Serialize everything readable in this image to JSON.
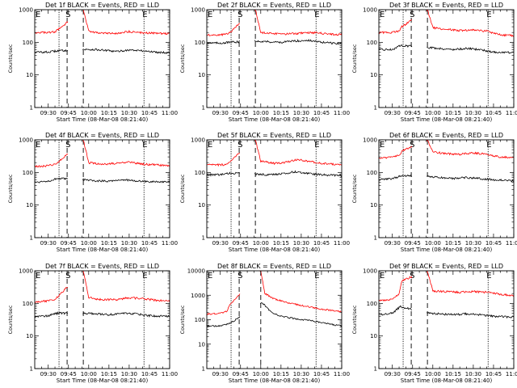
{
  "figure": {
    "colors": {
      "events": "#000000",
      "lld": "#ff0000",
      "axes": "#000000",
      "background": "#ffffff"
    },
    "shared": {
      "xlabel": "Start Time (08-Mar-08 08:21:40)",
      "ylabel": "Counts/sec",
      "xticks": [
        "09:30",
        "09:45",
        "10:00",
        "10:15",
        "10:30",
        "10:45",
        "11:00"
      ],
      "yticks": [
        "1",
        "10",
        "100",
        "1000"
      ],
      "yticks_tall": [
        "1",
        "10",
        "100",
        "1000",
        "10000"
      ],
      "marker_labels": [
        "E",
        "S",
        "E"
      ]
    }
  },
  "chart_data": [
    {
      "type": "line",
      "title": "Det 1f BLACK = Events, RED = LLD",
      "xlabel": "Start Time (08-Mar-08 08:21:40)",
      "ylabel": "Counts/sec",
      "y_scale": "log",
      "xlim": [
        "09:20",
        "11:00"
      ],
      "ylim": [
        1,
        1000
      ],
      "markers": {
        "E_start": "09:38",
        "S": "09:44",
        "gap_end": "09:56",
        "E_end": "10:41"
      },
      "series": [
        {
          "name": "Events",
          "color": "#000000",
          "x": [
            "09:20",
            "09:30",
            "09:37",
            "09:56",
            "10:05",
            "10:15",
            "10:20",
            "10:30",
            "10:40",
            "10:50",
            "11:00"
          ],
          "values": [
            50,
            50,
            55,
            60,
            60,
            55,
            52,
            58,
            55,
            50,
            48
          ]
        },
        {
          "name": "LLD",
          "color": "#ff0000",
          "x": [
            "09:20",
            "09:30",
            "09:35",
            "09:37",
            "09:56",
            "10:00",
            "10:10",
            "10:20",
            "10:25",
            "10:30",
            "10:40",
            "10:50",
            "11:00"
          ],
          "values": [
            200,
            200,
            210,
            240,
            1000,
            220,
            190,
            185,
            200,
            215,
            195,
            190,
            185
          ]
        }
      ]
    },
    {
      "type": "line",
      "title": "Det 2f BLACK = Events, RED = LLD",
      "xlabel": "Start Time (08-Mar-08 08:21:40)",
      "ylabel": "Counts/sec",
      "y_scale": "log",
      "xlim": [
        "09:20",
        "11:00"
      ],
      "ylim": [
        1,
        1000
      ],
      "markers": {
        "E_start": "09:38",
        "S": "09:44",
        "gap_end": "09:56",
        "E_end": "10:41"
      },
      "series": [
        {
          "name": "Events",
          "color": "#000000",
          "x": [
            "09:20",
            "09:30",
            "09:37",
            "09:56",
            "10:05",
            "10:15",
            "10:25",
            "10:35",
            "10:45",
            "11:00"
          ],
          "values": [
            95,
            95,
            100,
            110,
            105,
            100,
            110,
            115,
            100,
            90
          ]
        },
        {
          "name": "LLD",
          "color": "#ff0000",
          "x": [
            "09:20",
            "09:30",
            "09:35",
            "09:37",
            "09:56",
            "10:00",
            "10:10",
            "10:20",
            "10:30",
            "10:40",
            "10:50",
            "11:00"
          ],
          "values": [
            170,
            170,
            180,
            200,
            1000,
            200,
            185,
            180,
            190,
            200,
            180,
            170
          ]
        }
      ]
    },
    {
      "type": "line",
      "title": "Det 3f BLACK = Events, RED = LLD",
      "xlabel": "Start Time (08-Mar-08 08:21:40)",
      "ylabel": "Counts/sec",
      "y_scale": "log",
      "xlim": [
        "09:20",
        "11:00"
      ],
      "ylim": [
        1,
        1000
      ],
      "markers": {
        "E_start": "09:38",
        "S": "09:44",
        "gap_end": "09:56",
        "E_end": "10:41"
      },
      "series": [
        {
          "name": "Events",
          "color": "#000000",
          "x": [
            "09:20",
            "09:30",
            "09:36",
            "09:56",
            "10:05",
            "10:15",
            "10:25",
            "10:35",
            "10:45",
            "11:00"
          ],
          "values": [
            60,
            60,
            80,
            70,
            65,
            60,
            65,
            60,
            50,
            48
          ]
        },
        {
          "name": "LLD",
          "color": "#ff0000",
          "x": [
            "09:20",
            "09:30",
            "09:35",
            "09:37",
            "09:56",
            "10:00",
            "10:10",
            "10:20",
            "10:30",
            "10:40",
            "10:50",
            "11:00"
          ],
          "values": [
            200,
            200,
            220,
            300,
            1000,
            280,
            250,
            230,
            240,
            220,
            170,
            160
          ]
        }
      ]
    },
    {
      "type": "line",
      "title": "Det 4f BLACK = Events, RED = LLD",
      "xlabel": "Start Time (08-Mar-08 08:21:40)",
      "ylabel": "Counts/sec",
      "y_scale": "log",
      "xlim": [
        "09:20",
        "11:00"
      ],
      "ylim": [
        1,
        1000
      ],
      "markers": {
        "E_start": "09:38",
        "S": "09:44",
        "gap_end": "09:56",
        "E_end": "10:41"
      },
      "series": [
        {
          "name": "Events",
          "color": "#000000",
          "x": [
            "09:20",
            "09:30",
            "09:37",
            "09:56",
            "10:05",
            "10:15",
            "10:25",
            "10:35",
            "10:45",
            "11:00"
          ],
          "values": [
            50,
            55,
            65,
            60,
            55,
            55,
            60,
            55,
            52,
            50
          ]
        },
        {
          "name": "LLD",
          "color": "#ff0000",
          "x": [
            "09:20",
            "09:30",
            "09:35",
            "09:37",
            "09:56",
            "10:00",
            "10:10",
            "10:20",
            "10:30",
            "10:40",
            "10:50",
            "11:00"
          ],
          "values": [
            150,
            160,
            180,
            200,
            1000,
            200,
            180,
            190,
            210,
            180,
            170,
            160
          ]
        }
      ]
    },
    {
      "type": "line",
      "title": "Det 5f BLACK = Events, RED = LLD",
      "xlabel": "Start Time (08-Mar-08 08:21:40)",
      "ylabel": "Counts/sec",
      "y_scale": "log",
      "xlim": [
        "09:20",
        "11:00"
      ],
      "ylim": [
        1,
        1000
      ],
      "markers": {
        "E_start": "09:38",
        "S": "09:44",
        "gap_end": "09:56",
        "E_end": "10:41"
      },
      "series": [
        {
          "name": "Events",
          "color": "#000000",
          "x": [
            "09:20",
            "09:30",
            "09:37",
            "09:56",
            "10:05",
            "10:15",
            "10:25",
            "10:35",
            "10:45",
            "11:00"
          ],
          "values": [
            85,
            85,
            95,
            90,
            85,
            90,
            105,
            95,
            85,
            80
          ]
        },
        {
          "name": "LLD",
          "color": "#ff0000",
          "x": [
            "09:20",
            "09:30",
            "09:35",
            "09:37",
            "09:56",
            "10:00",
            "10:10",
            "10:20",
            "10:28",
            "10:35",
            "10:45",
            "11:00"
          ],
          "values": [
            170,
            170,
            180,
            220,
            1000,
            220,
            190,
            210,
            250,
            220,
            190,
            170
          ]
        }
      ]
    },
    {
      "type": "line",
      "title": "Det 6f BLACK = Events, RED = LLD",
      "xlabel": "Start Time (08-Mar-08 08:21:40)",
      "ylabel": "Counts/sec",
      "y_scale": "log",
      "xlim": [
        "09:20",
        "11:00"
      ],
      "ylim": [
        1,
        1000
      ],
      "markers": {
        "E_start": "09:38",
        "S": "09:44",
        "gap_end": "09:56",
        "E_end": "10:41"
      },
      "series": [
        {
          "name": "Events",
          "color": "#000000",
          "x": [
            "09:20",
            "09:30",
            "09:37",
            "09:56",
            "10:05",
            "10:15",
            "10:25",
            "10:35",
            "10:45",
            "11:00"
          ],
          "values": [
            60,
            65,
            80,
            75,
            70,
            65,
            70,
            65,
            60,
            55
          ]
        },
        {
          "name": "LLD",
          "color": "#ff0000",
          "x": [
            "09:20",
            "09:30",
            "09:35",
            "09:37",
            "09:56",
            "10:00",
            "10:10",
            "10:20",
            "10:30",
            "10:40",
            "10:50",
            "11:00"
          ],
          "values": [
            280,
            290,
            330,
            450,
            1000,
            420,
            380,
            360,
            400,
            360,
            300,
            280
          ]
        }
      ]
    },
    {
      "type": "line",
      "title": "Det 7f BLACK = Events, RED = LLD",
      "xlabel": "Start Time (08-Mar-08 08:21:40)",
      "ylabel": "Counts/sec",
      "y_scale": "log",
      "xlim": [
        "09:20",
        "11:00"
      ],
      "ylim": [
        1,
        1000
      ],
      "markers": {
        "E_start": "09:38",
        "S": "09:44",
        "gap_end": "09:56",
        "E_end": "10:41"
      },
      "series": [
        {
          "name": "Events",
          "color": "#000000",
          "x": [
            "09:20",
            "09:30",
            "09:37",
            "09:56",
            "10:05",
            "10:15",
            "10:25",
            "10:35",
            "10:45",
            "11:00"
          ],
          "values": [
            40,
            42,
            50,
            50,
            48,
            45,
            50,
            48,
            42,
            40
          ]
        },
        {
          "name": "LLD",
          "color": "#ff0000",
          "x": [
            "09:20",
            "09:30",
            "09:35",
            "09:37",
            "09:56",
            "10:00",
            "10:10",
            "10:20",
            "10:30",
            "10:40",
            "10:50",
            "11:00"
          ],
          "values": [
            110,
            120,
            130,
            160,
            1000,
            150,
            130,
            130,
            150,
            140,
            125,
            115
          ]
        }
      ]
    },
    {
      "type": "line",
      "title": "Det 8f BLACK = Events, RED = LLD",
      "xlabel": "Start Time (08-Mar-08 08:21:40)",
      "ylabel": "Counts/sec",
      "y_scale": "log",
      "xlim": [
        "09:20",
        "11:00"
      ],
      "ylim": [
        1,
        10000
      ],
      "markers": {
        "E_start": "09:38",
        "S": "09:44",
        "gap_end": "10:00",
        "E_end": "10:41"
      },
      "series": [
        {
          "name": "Events",
          "color": "#000000",
          "x": [
            "09:20",
            "09:30",
            "09:37",
            "10:01",
            "10:08",
            "10:15",
            "10:25",
            "10:35",
            "10:45",
            "11:00"
          ],
          "values": [
            55,
            55,
            70,
            500,
            200,
            140,
            110,
            95,
            75,
            55
          ]
        },
        {
          "name": "LLD",
          "color": "#ff0000",
          "x": [
            "09:20",
            "09:30",
            "09:35",
            "09:37",
            "10:00",
            "10:03",
            "10:10",
            "10:20",
            "10:30",
            "10:40",
            "10:50",
            "11:00"
          ],
          "values": [
            170,
            180,
            220,
            400,
            10000,
            1200,
            700,
            500,
            380,
            300,
            250,
            210
          ]
        }
      ]
    },
    {
      "type": "line",
      "title": "Det 9f BLACK = Events, RED = LLD",
      "xlabel": "Start Time (08-Mar-08 08:21:40)",
      "ylabel": "Counts/sec",
      "y_scale": "log",
      "xlim": [
        "09:20",
        "11:00"
      ],
      "ylim": [
        1,
        1000
      ],
      "markers": {
        "E_start": "09:38",
        "S": "09:44",
        "gap_end": "09:56",
        "E_end": "10:41"
      },
      "series": [
        {
          "name": "Events",
          "color": "#000000",
          "x": [
            "09:20",
            "09:30",
            "09:36",
            "09:56",
            "10:05",
            "10:15",
            "10:25",
            "10:35",
            "10:45",
            "11:00"
          ],
          "values": [
            45,
            50,
            80,
            50,
            48,
            45,
            48,
            45,
            40,
            38
          ]
        },
        {
          "name": "LLD",
          "color": "#ff0000",
          "x": [
            "09:20",
            "09:30",
            "09:35",
            "09:37",
            "09:56",
            "10:00",
            "10:10",
            "10:20",
            "10:30",
            "10:40",
            "10:50",
            "11:00"
          ],
          "values": [
            120,
            130,
            200,
            500,
            1000,
            240,
            230,
            220,
            230,
            220,
            190,
            170
          ]
        }
      ]
    }
  ]
}
